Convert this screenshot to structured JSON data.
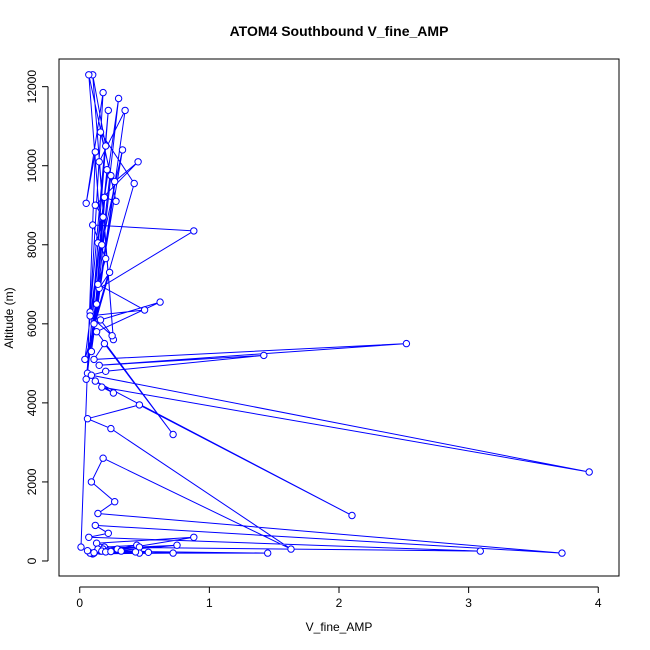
{
  "chart_data": {
    "type": "line",
    "title": "ATOM4 Southbound V_fine_AMP",
    "xlabel": "V_fine_AMP",
    "ylabel": "Altitude (m)",
    "xlim": [
      -0.16,
      4.16
    ],
    "ylim": [
      -380,
      12700
    ],
    "x_ticks": [
      0,
      1,
      2,
      3,
      4
    ],
    "y_ticks": [
      0,
      2000,
      4000,
      6000,
      8000,
      10000,
      12000
    ],
    "grid": false,
    "legend": "none",
    "line_color": "#0000ff",
    "marker": "open-circle",
    "series": [
      {
        "x": [
          0.01,
          0.12,
          0.05,
          0.18,
          0.08,
          0.22,
          0.14,
          0.3,
          0.06,
          0.2,
          0.1,
          0.26,
          0.15,
          0.35,
          0.09,
          0.24,
          0.16,
          0.42,
          0.11,
          0.19,
          0.28,
          0.07,
          0.17,
          0.33,
          0.13,
          0.21,
          0.05,
          0.27,
          0.45,
          0.12,
          0.18,
          0.04,
          0.23,
          0.15,
          0.88,
          0.1,
          0.2,
          0.14,
          0.5,
          0.08,
          0.25,
          0.16,
          0.62,
          0.13,
          0.72,
          0.19,
          0.11,
          2.52,
          0.15,
          1.42,
          0.2,
          0.09,
          3.93,
          0.17,
          0.26,
          0.12,
          2.1,
          0.46,
          0.06,
          0.24,
          1.63,
          0.18,
          0.09,
          0.27,
          0.14,
          3.72,
          0.12,
          0.22,
          0.07,
          3.09,
          0.19,
          0.44,
          0.11,
          1.45,
          0.16,
          0.29,
          0.13,
          0.88,
          0.1,
          0.72,
          0.18,
          0.46,
          0.21,
          0.09,
          0.75,
          0.14,
          0.46,
          0.17,
          0.08,
          0.53,
          0.2,
          0.32,
          0.11,
          0.43,
          0.06,
          0.24
        ],
        "y": [
          350,
          10350,
          9050,
          11850,
          6300,
          11400,
          8050,
          11700,
          4750,
          10500,
          12300,
          5600,
          10100,
          11400,
          5300,
          9750,
          10850,
          9550,
          6000,
          9200,
          9100,
          12300,
          8000,
          10400,
          6500,
          9900,
          4600,
          9600,
          10100,
          9000,
          8700,
          5100,
          7300,
          6900,
          8350,
          8500,
          7650,
          7000,
          6350,
          6200,
          5700,
          6100,
          6550,
          5800,
          3200,
          5500,
          5100,
          5500,
          4950,
          5200,
          4800,
          4700,
          2250,
          4400,
          4250,
          4550,
          1150,
          3950,
          3600,
          3350,
          300,
          2600,
          2000,
          1500,
          1200,
          200,
          900,
          700,
          600,
          250,
          350,
          400,
          200,
          200,
          250,
          300,
          450,
          600,
          180,
          200,
          300,
          350,
          250,
          200,
          400,
          300,
          200,
          250,
          200,
          220,
          230,
          250,
          210,
          230,
          260,
          240
        ]
      }
    ]
  }
}
